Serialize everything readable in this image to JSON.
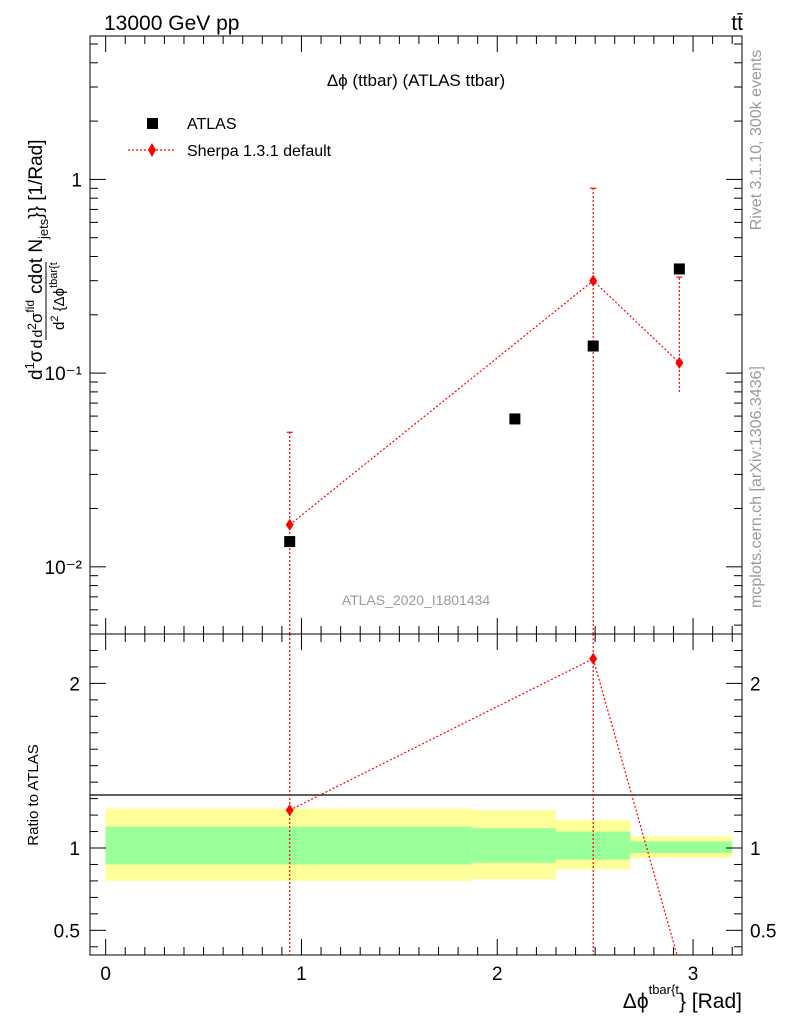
{
  "header": {
    "energy_label": "13000 GeV pp",
    "process_label": "tt̄"
  },
  "side_labels": {
    "rivet": "Rivet 3.1.10,  300k events",
    "source": "mcplots.cern.ch [arXiv:1306.3436]"
  },
  "chart_data": [
    {
      "type": "scatter",
      "title": "Δϕ (ttbar) (ATLAS ttbar)",
      "watermark": "ATLAS_2020_I1801434",
      "ylabel": "d1σd²σfiddcdot Njets}} [1/Rad]",
      "yscale": "log",
      "ylim": [
        0.0045,
        5.5
      ],
      "xlim": [
        -0.08,
        3.25
      ],
      "y_ticks": [
        {
          "value": 0.01,
          "label": "10⁻²"
        },
        {
          "value": 0.1,
          "label": "10⁻¹"
        },
        {
          "value": 1,
          "label": "1"
        }
      ],
      "legend_position": "top-left",
      "series": [
        {
          "name": "ATLAS",
          "color": "#000000",
          "marker": "square",
          "x": [
            0.94,
            2.09,
            2.49,
            2.93
          ],
          "y": [
            0.0135,
            0.058,
            0.138,
            0.345
          ]
        },
        {
          "name": "Sherpa 1.3.1 default",
          "color": "#ff0000",
          "marker": "diamond",
          "x": [
            0.94,
            2.49,
            2.93
          ],
          "y": [
            0.0165,
            0.3,
            0.113
          ],
          "y_err_low": [
            0.0,
            0.0,
            0.033
          ],
          "y_err_high": [
            0.033,
            0.6,
            0.2
          ]
        }
      ]
    },
    {
      "type": "line",
      "ylabel": "Ratio to ATLAS",
      "xlabel": "Δϕtbar{t} [Rad]",
      "ylim": [
        0.35,
        2.3
      ],
      "xlim": [
        -0.08,
        3.25
      ],
      "y_ticks": [
        0.5,
        1,
        2
      ],
      "x_ticks": [
        0,
        1,
        2,
        3
      ],
      "bands": {
        "bins": [
          [
            0,
            1.87
          ],
          [
            1.87,
            2.3
          ],
          [
            2.3,
            2.68
          ],
          [
            2.68,
            3.2
          ]
        ],
        "inner": [
          [
            0.9,
            1.13
          ],
          [
            0.91,
            1.12
          ],
          [
            0.93,
            1.1
          ],
          [
            0.97,
            1.04
          ]
        ],
        "outer": [
          [
            0.8,
            1.24
          ],
          [
            0.81,
            1.23
          ],
          [
            0.87,
            1.17
          ],
          [
            0.94,
            1.07
          ]
        ],
        "inner_color": "#99ff99",
        "outer_color": "#ffff99"
      },
      "series": [
        {
          "name": "Sherpa 1.3.1 default",
          "color": "#ff0000",
          "x": [
            0.94,
            2.49,
            2.93
          ],
          "y": [
            1.23,
            2.15,
            0.3
          ]
        }
      ]
    }
  ]
}
